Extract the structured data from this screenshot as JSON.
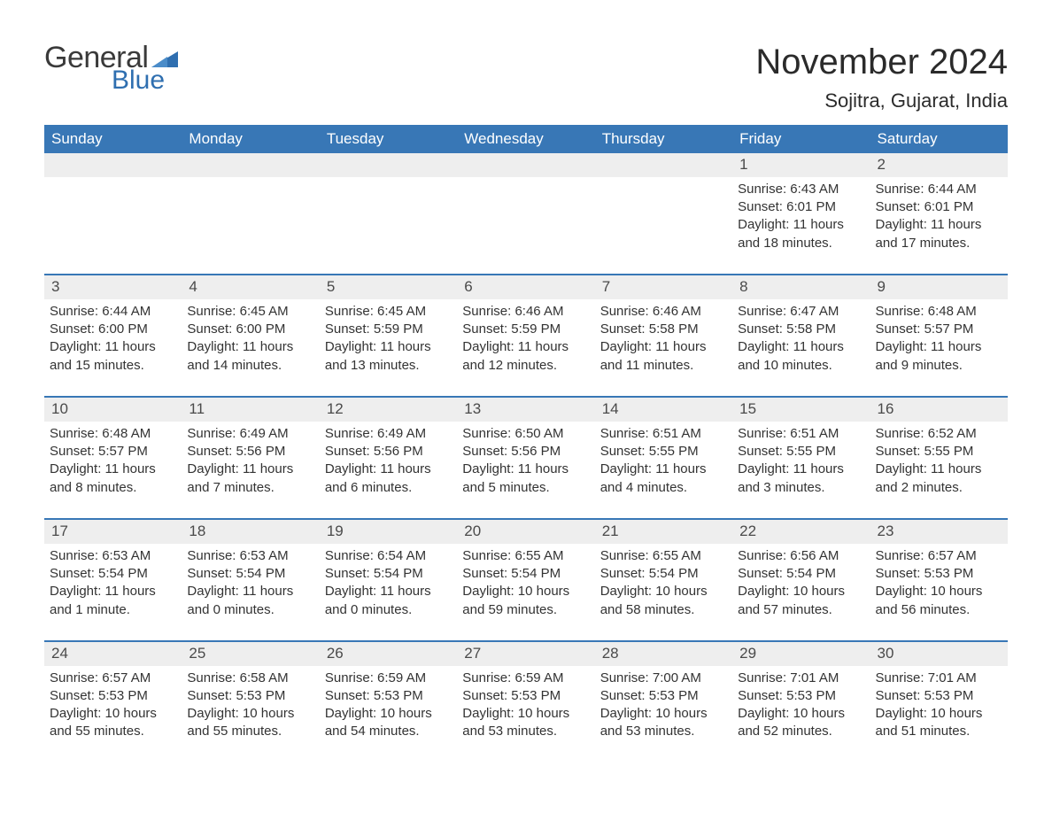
{
  "logo": {
    "text1": "General",
    "text2": "Blue",
    "tri_color": "#2f6fb0"
  },
  "title": "November 2024",
  "location": "Sojitra, Gujarat, India",
  "colors": {
    "header_bg": "#3877b6",
    "header_text": "#ffffff",
    "daynum_bg": "#eeeeee",
    "text": "#333333",
    "rule": "#3877b6"
  },
  "weekdays": [
    "Sunday",
    "Monday",
    "Tuesday",
    "Wednesday",
    "Thursday",
    "Friday",
    "Saturday"
  ],
  "weeks": [
    [
      null,
      null,
      null,
      null,
      null,
      {
        "d": "1",
        "sr": "6:43 AM",
        "ss": "6:01 PM",
        "dl": "11 hours and 18 minutes."
      },
      {
        "d": "2",
        "sr": "6:44 AM",
        "ss": "6:01 PM",
        "dl": "11 hours and 17 minutes."
      }
    ],
    [
      {
        "d": "3",
        "sr": "6:44 AM",
        "ss": "6:00 PM",
        "dl": "11 hours and 15 minutes."
      },
      {
        "d": "4",
        "sr": "6:45 AM",
        "ss": "6:00 PM",
        "dl": "11 hours and 14 minutes."
      },
      {
        "d": "5",
        "sr": "6:45 AM",
        "ss": "5:59 PM",
        "dl": "11 hours and 13 minutes."
      },
      {
        "d": "6",
        "sr": "6:46 AM",
        "ss": "5:59 PM",
        "dl": "11 hours and 12 minutes."
      },
      {
        "d": "7",
        "sr": "6:46 AM",
        "ss": "5:58 PM",
        "dl": "11 hours and 11 minutes."
      },
      {
        "d": "8",
        "sr": "6:47 AM",
        "ss": "5:58 PM",
        "dl": "11 hours and 10 minutes."
      },
      {
        "d": "9",
        "sr": "6:48 AM",
        "ss": "5:57 PM",
        "dl": "11 hours and 9 minutes."
      }
    ],
    [
      {
        "d": "10",
        "sr": "6:48 AM",
        "ss": "5:57 PM",
        "dl": "11 hours and 8 minutes."
      },
      {
        "d": "11",
        "sr": "6:49 AM",
        "ss": "5:56 PM",
        "dl": "11 hours and 7 minutes."
      },
      {
        "d": "12",
        "sr": "6:49 AM",
        "ss": "5:56 PM",
        "dl": "11 hours and 6 minutes."
      },
      {
        "d": "13",
        "sr": "6:50 AM",
        "ss": "5:56 PM",
        "dl": "11 hours and 5 minutes."
      },
      {
        "d": "14",
        "sr": "6:51 AM",
        "ss": "5:55 PM",
        "dl": "11 hours and 4 minutes."
      },
      {
        "d": "15",
        "sr": "6:51 AM",
        "ss": "5:55 PM",
        "dl": "11 hours and 3 minutes."
      },
      {
        "d": "16",
        "sr": "6:52 AM",
        "ss": "5:55 PM",
        "dl": "11 hours and 2 minutes."
      }
    ],
    [
      {
        "d": "17",
        "sr": "6:53 AM",
        "ss": "5:54 PM",
        "dl": "11 hours and 1 minute."
      },
      {
        "d": "18",
        "sr": "6:53 AM",
        "ss": "5:54 PM",
        "dl": "11 hours and 0 minutes."
      },
      {
        "d": "19",
        "sr": "6:54 AM",
        "ss": "5:54 PM",
        "dl": "11 hours and 0 minutes."
      },
      {
        "d": "20",
        "sr": "6:55 AM",
        "ss": "5:54 PM",
        "dl": "10 hours and 59 minutes."
      },
      {
        "d": "21",
        "sr": "6:55 AM",
        "ss": "5:54 PM",
        "dl": "10 hours and 58 minutes."
      },
      {
        "d": "22",
        "sr": "6:56 AM",
        "ss": "5:54 PM",
        "dl": "10 hours and 57 minutes."
      },
      {
        "d": "23",
        "sr": "6:57 AM",
        "ss": "5:53 PM",
        "dl": "10 hours and 56 minutes."
      }
    ],
    [
      {
        "d": "24",
        "sr": "6:57 AM",
        "ss": "5:53 PM",
        "dl": "10 hours and 55 minutes."
      },
      {
        "d": "25",
        "sr": "6:58 AM",
        "ss": "5:53 PM",
        "dl": "10 hours and 55 minutes."
      },
      {
        "d": "26",
        "sr": "6:59 AM",
        "ss": "5:53 PM",
        "dl": "10 hours and 54 minutes."
      },
      {
        "d": "27",
        "sr": "6:59 AM",
        "ss": "5:53 PM",
        "dl": "10 hours and 53 minutes."
      },
      {
        "d": "28",
        "sr": "7:00 AM",
        "ss": "5:53 PM",
        "dl": "10 hours and 53 minutes."
      },
      {
        "d": "29",
        "sr": "7:01 AM",
        "ss": "5:53 PM",
        "dl": "10 hours and 52 minutes."
      },
      {
        "d": "30",
        "sr": "7:01 AM",
        "ss": "5:53 PM",
        "dl": "10 hours and 51 minutes."
      }
    ]
  ],
  "labels": {
    "sunrise": "Sunrise: ",
    "sunset": "Sunset: ",
    "daylight": "Daylight: "
  }
}
